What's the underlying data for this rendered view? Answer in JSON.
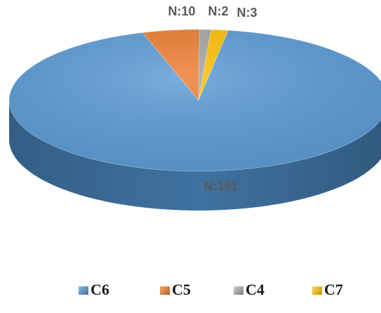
{
  "chart_data": {
    "type": "pie",
    "categories": [
      "C6",
      "C5",
      "C4",
      "C7"
    ],
    "values": [
      191,
      10,
      2,
      3
    ],
    "data_labels": [
      "N:191",
      "N:10",
      "N:2",
      "N:3"
    ],
    "colors": [
      "#5b9bd5",
      "#ed7d31",
      "#a5a5a5",
      "#ffc000"
    ],
    "side_colors": [
      "#3f72a1",
      "#b45f25",
      "#7d7d7d",
      "#c49400"
    ],
    "legend": {
      "position": "bottom",
      "items": [
        {
          "label": "C6",
          "color": "#5b9bd5"
        },
        {
          "label": "C5",
          "color": "#ed7d31"
        },
        {
          "label": "C4",
          "color": "#a5a5a5"
        },
        {
          "label": "C7",
          "color": "#ffc000"
        }
      ]
    },
    "style": "3d-pie"
  }
}
